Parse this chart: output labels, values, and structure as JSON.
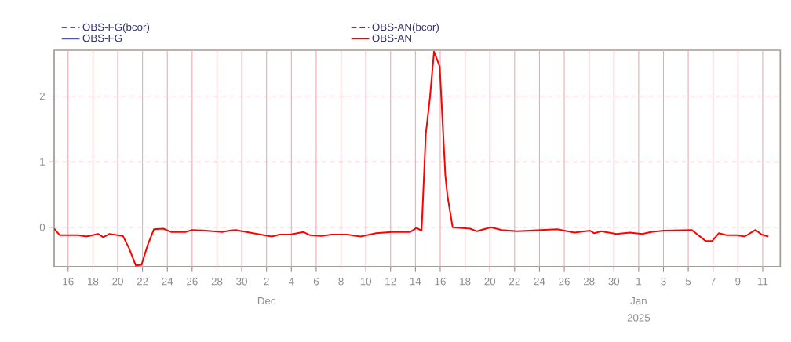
{
  "chart_data": {
    "type": "line",
    "x": [
      "2024-11-14T21:00",
      "2024-11-15T08:00",
      "2024-11-16T20:00",
      "2024-11-17T11:00",
      "2024-11-18T10:00",
      "2024-11-18T20:00",
      "2024-11-19T08:00",
      "2024-11-20T10:00",
      "2024-11-20T22:00",
      "2024-11-21T11:00",
      "2024-11-21T22:00",
      "2024-11-22T10:00",
      "2024-11-22T22:00",
      "2024-11-23T16:00",
      "2024-11-24T07:00",
      "2024-11-25T11:00",
      "2024-11-26T00:00",
      "2024-11-27T02:00",
      "2024-11-28T10:00",
      "2024-11-29T00:00",
      "2024-11-29T12:00",
      "2024-11-30T12:00",
      "2024-12-02T10:00",
      "2024-12-03T01:00",
      "2024-12-03T22:00",
      "2024-12-04T23:00",
      "2024-12-05T12:00",
      "2024-12-06T10:00",
      "2024-12-07T06:00",
      "2024-12-08T12:00",
      "2024-12-09T14:00",
      "2024-12-10T20:00",
      "2024-12-12T02:00",
      "2024-12-13T14:00",
      "2024-12-14T02:00",
      "2024-12-14T12:00",
      "2024-12-14T20:00",
      "2024-12-15T04:00",
      "2024-12-15T12:00",
      "2024-12-15T23:00",
      "2024-12-16T10:00",
      "2024-12-16T14:00",
      "2024-12-17T00:00",
      "2024-12-18T10:00",
      "2024-12-18T23:00",
      "2024-12-20T02:00",
      "2024-12-20T23:00",
      "2024-12-22T05:00",
      "2024-12-25T10:00",
      "2024-12-26T20:00",
      "2024-12-28T02:00",
      "2024-12-28T10:00",
      "2024-12-28T23:00",
      "2024-12-30T05:00",
      "2024-12-31T07:00",
      "2025-01-01T07:00",
      "2025-01-02T00:00",
      "2025-01-03T00:00",
      "2025-01-05T07:00",
      "2025-01-06T10:00",
      "2025-01-06T22:00",
      "2025-01-07T11:00",
      "2025-01-08T02:00",
      "2025-01-08T22:00",
      "2025-01-09T13:00",
      "2025-01-10T10:00",
      "2025-01-10T22:00",
      "2025-01-11T11:00"
    ],
    "series": [
      {
        "name": "OBS-FG(bcor)",
        "color": "#4a4aff",
        "line_style": "dashed",
        "values": [
          null,
          null,
          null,
          null,
          null,
          null,
          null,
          null,
          null,
          null,
          null,
          null,
          null,
          null,
          null,
          null,
          null,
          null,
          null,
          null,
          null,
          null,
          null,
          null,
          null,
          null,
          null,
          null,
          null,
          null,
          null,
          null,
          null,
          null,
          null,
          null,
          null,
          null,
          null,
          null,
          null,
          null,
          null,
          null,
          null,
          null,
          null,
          null,
          null,
          null,
          null,
          null,
          null,
          null,
          null,
          null,
          null,
          null,
          null,
          null,
          null,
          null,
          null,
          null,
          null,
          null,
          null,
          null
        ]
      },
      {
        "name": "OBS-FG",
        "color": "#4a4aff",
        "line_style": "solid",
        "values": [
          null,
          null,
          null,
          null,
          null,
          null,
          null,
          null,
          null,
          null,
          null,
          null,
          null,
          null,
          null,
          null,
          null,
          null,
          null,
          null,
          null,
          null,
          null,
          null,
          null,
          null,
          null,
          null,
          null,
          null,
          null,
          null,
          null,
          null,
          null,
          null,
          null,
          null,
          null,
          null,
          null,
          null,
          null,
          null,
          null,
          null,
          null,
          null,
          null,
          null,
          null,
          null,
          null,
          null,
          null,
          null,
          null,
          null,
          null,
          null,
          null,
          null,
          null,
          null,
          null,
          null,
          null,
          null
        ]
      },
      {
        "name": "OBS-AN(bcor)",
        "color": "#ff0000",
        "line_style": "dashed",
        "values": [
          null,
          null,
          null,
          null,
          null,
          null,
          null,
          null,
          null,
          null,
          null,
          null,
          null,
          null,
          null,
          null,
          null,
          null,
          null,
          null,
          null,
          null,
          null,
          null,
          null,
          null,
          null,
          null,
          null,
          null,
          null,
          null,
          null,
          null,
          null,
          null,
          null,
          null,
          null,
          null,
          null,
          null,
          null,
          null,
          null,
          null,
          null,
          null,
          null,
          null,
          null,
          null,
          null,
          null,
          null,
          null,
          null,
          null,
          null,
          null,
          null,
          null,
          null,
          null,
          null,
          null,
          null,
          null
        ]
      },
      {
        "name": "OBS-AN",
        "color": "#ff0000",
        "line_style": "solid",
        "values": [
          -0.02,
          -0.12,
          -0.12,
          -0.14,
          -0.1,
          -0.15,
          -0.1,
          -0.13,
          -0.32,
          -0.58,
          -0.57,
          -0.27,
          -0.03,
          -0.02,
          -0.07,
          -0.07,
          -0.04,
          -0.05,
          -0.07,
          -0.05,
          -0.04,
          null,
          -0.14,
          -0.11,
          -0.11,
          -0.07,
          -0.12,
          -0.13,
          -0.11,
          -0.11,
          -0.14,
          -0.09,
          -0.07,
          -0.07,
          -0.01,
          -0.05,
          1.42,
          1.97,
          2.68,
          2.45,
          0.78,
          0.48,
          0.0,
          -0.02,
          -0.06,
          0.0,
          -0.04,
          -0.06,
          -0.03,
          -0.08,
          -0.05,
          -0.09,
          -0.06,
          -0.1,
          -0.08,
          -0.1,
          -0.07,
          -0.05,
          -0.04,
          -0.21,
          -0.21,
          -0.09,
          -0.12,
          -0.12,
          -0.14,
          -0.04,
          -0.11,
          -0.14
        ]
      }
    ],
    "xlim": [
      "2024-11-14T21:00",
      "2025-01-12T10:00"
    ],
    "xticks": [
      {
        "value": "2024-11-16",
        "label": "16"
      },
      {
        "value": "2024-11-18",
        "label": "18"
      },
      {
        "value": "2024-11-20",
        "label": "20"
      },
      {
        "value": "2024-11-22",
        "label": "22"
      },
      {
        "value": "2024-11-24",
        "label": "24"
      },
      {
        "value": "2024-11-26",
        "label": "26"
      },
      {
        "value": "2024-11-28",
        "label": "28"
      },
      {
        "value": "2024-11-30",
        "label": "30"
      },
      {
        "value": "2024-12-02",
        "label": "2"
      },
      {
        "value": "2024-12-04",
        "label": "4"
      },
      {
        "value": "2024-12-06",
        "label": "6"
      },
      {
        "value": "2024-12-08",
        "label": "8"
      },
      {
        "value": "2024-12-10",
        "label": "10"
      },
      {
        "value": "2024-12-12",
        "label": "12"
      },
      {
        "value": "2024-12-14",
        "label": "14"
      },
      {
        "value": "2024-12-16",
        "label": "16"
      },
      {
        "value": "2024-12-18",
        "label": "18"
      },
      {
        "value": "2024-12-20",
        "label": "20"
      },
      {
        "value": "2024-12-22",
        "label": "22"
      },
      {
        "value": "2024-12-24",
        "label": "24"
      },
      {
        "value": "2024-12-26",
        "label": "26"
      },
      {
        "value": "2024-12-28",
        "label": "28"
      },
      {
        "value": "2024-12-30",
        "label": "30"
      },
      {
        "value": "2025-01-01",
        "label": "1"
      },
      {
        "value": "2025-01-03",
        "label": "3"
      },
      {
        "value": "2025-01-05",
        "label": "5"
      },
      {
        "value": "2025-01-07",
        "label": "7"
      },
      {
        "value": "2025-01-09",
        "label": "9"
      },
      {
        "value": "2025-01-11",
        "label": "11"
      }
    ],
    "ylim": [
      -0.6,
      2.7
    ],
    "yticks": [
      0,
      1,
      2
    ],
    "grid": true,
    "legend": "top",
    "annotations": [
      "Dec",
      "Jan",
      "2025"
    ]
  }
}
